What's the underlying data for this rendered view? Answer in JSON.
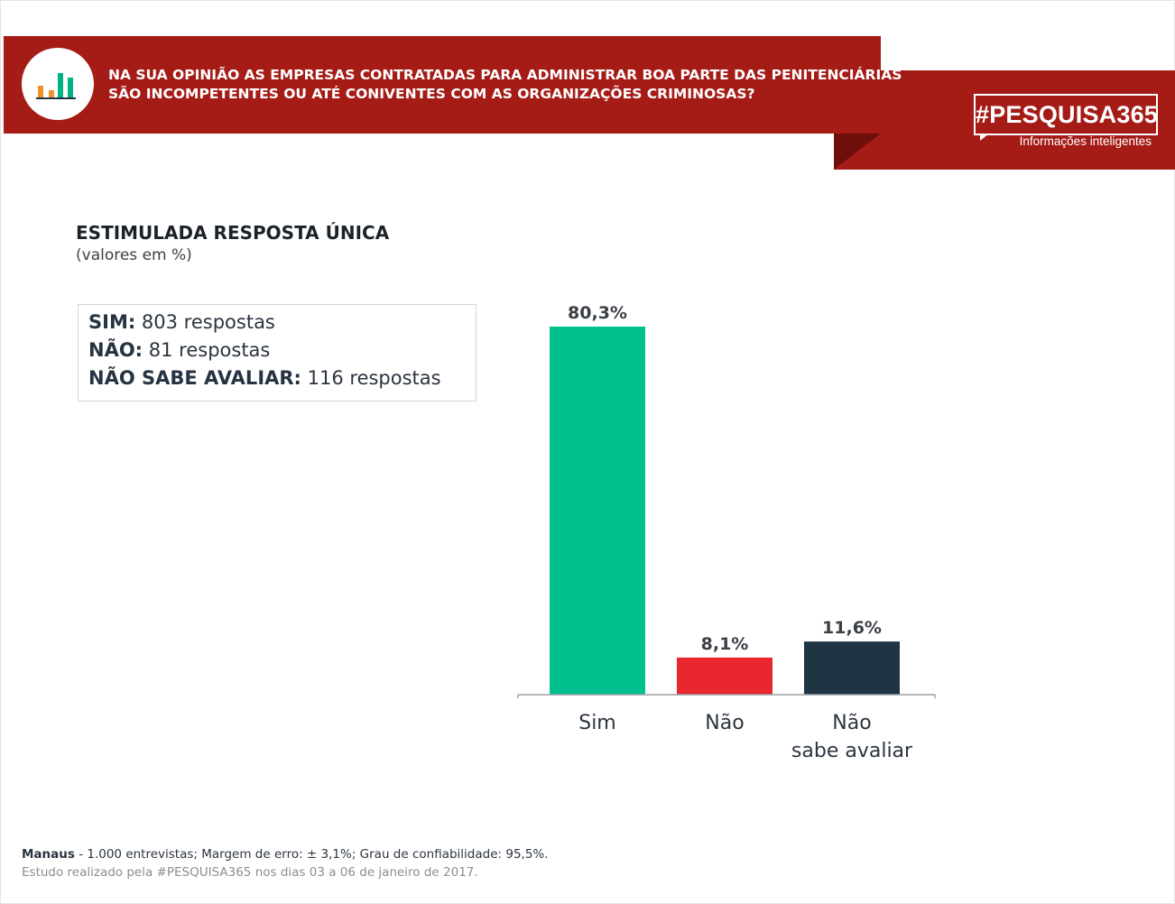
{
  "header": {
    "question_line1": "NA SUA OPINIÃO AS EMPRESAS CONTRATADAS PARA ADMINISTRAR BOA PARTE DAS PENITENCIÁRIAS",
    "question_line2": "SÃO INCOMPETENTES OU ATÉ CONIVENTES COM AS ORGANIZAÇÕES CRIMINOSAS?",
    "logo_icon": "bar-chart-icon"
  },
  "brand": {
    "name": "#PESQUISA365",
    "tagline": "Informações inteligentes"
  },
  "subtitle": {
    "title": "ESTIMULADA RESPOSTA ÚNICA",
    "units": "(valores em %)"
  },
  "responses": [
    {
      "label": "SIM:",
      "text": "803 respostas"
    },
    {
      "label": "NÃO:",
      "text": "81 respostas"
    },
    {
      "label": "NÃO SABE AVALIAR:",
      "text": "116 respostas"
    }
  ],
  "chart_data": {
    "type": "bar",
    "title": "",
    "xlabel": "",
    "ylabel": "",
    "categories": [
      "Sim",
      "Não",
      "Não sabe avaliar"
    ],
    "category_lines": [
      [
        "Sim"
      ],
      [
        "Não"
      ],
      [
        "Não",
        "sabe avaliar"
      ]
    ],
    "values": [
      80.3,
      8.1,
      11.6
    ],
    "value_labels": [
      "80,3%",
      "8,1%",
      "11,6%"
    ],
    "colors": [
      "#00c08f",
      "#e7272d",
      "#203544"
    ],
    "ylim": [
      0,
      80.3
    ],
    "grid": false,
    "legend": "none"
  },
  "footer": {
    "city": "Manaus",
    "details": " - 1.000 entrevistas; Margem de erro: ± 3,1%; Grau de confiabilidade: 95,5%.",
    "study": "Estudo realizado pela #PESQUISA365 nos dias 03 a 06 de janeiro de 2017."
  },
  "colors": {
    "banner": "#a51c17",
    "banner_fold": "#6e0f0b",
    "text_dark": "#2b3440"
  }
}
